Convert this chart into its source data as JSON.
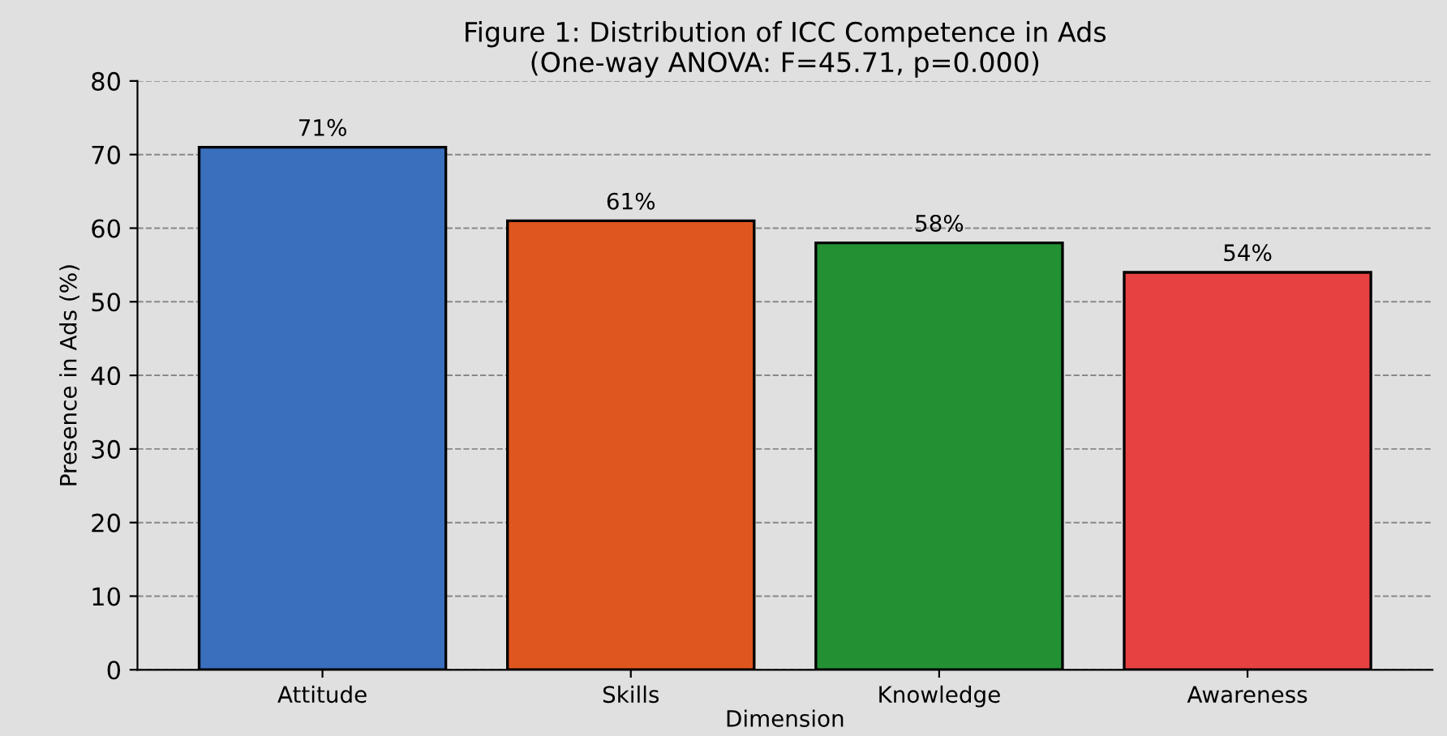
{
  "chart_data": {
    "type": "bar",
    "title": "Figure 1: Distribution of ICC Competence in Ads\n(One-way ANOVA: F=45.71, p=0.000)",
    "xlabel": "Dimension",
    "ylabel": "Presence in Ads (%)",
    "categories": [
      "Attitude",
      "Skills",
      "Knowledge",
      "Awareness"
    ],
    "values": [
      71,
      61,
      58,
      54
    ],
    "colors": [
      "#3a6fbd",
      "#e0561f",
      "#239133",
      "#e84141"
    ],
    "value_labels": [
      "71%",
      "61%",
      "58%",
      "54%"
    ],
    "ylim": [
      0,
      80
    ],
    "yticks": [
      0,
      10,
      20,
      30,
      40,
      50,
      60,
      70,
      80
    ],
    "grid": "y"
  }
}
